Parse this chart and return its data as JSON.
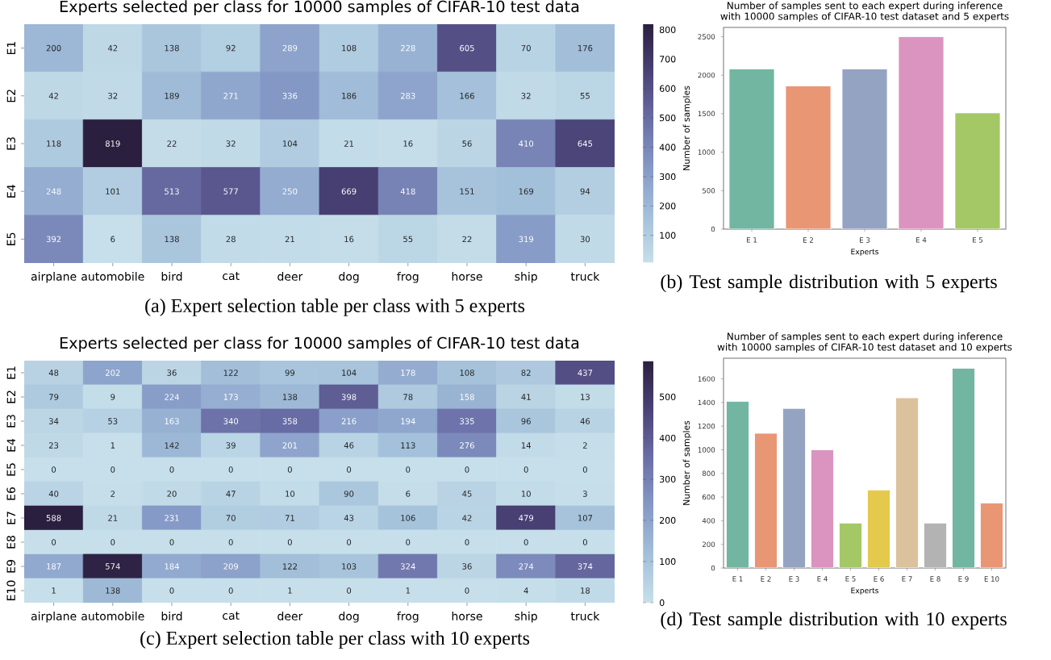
{
  "chart_data": [
    {
      "type": "heatmap",
      "title": "Experts selected per class for 10000 samples of CIFAR-10 test data",
      "categories": [
        "airplane",
        "automobile",
        "bird",
        "cat",
        "deer",
        "dog",
        "frog",
        "horse",
        "ship",
        "truck"
      ],
      "y_categories": [
        "E1",
        "E2",
        "E3",
        "E4",
        "E5"
      ],
      "cells": [
        [
          200,
          42,
          138,
          92,
          289,
          108,
          228,
          605,
          70,
          176
        ],
        [
          42,
          32,
          189,
          271,
          336,
          186,
          283,
          166,
          32,
          55
        ],
        [
          118,
          819,
          22,
          32,
          104,
          21,
          16,
          56,
          410,
          645
        ],
        [
          248,
          101,
          513,
          577,
          250,
          669,
          418,
          151,
          169,
          94
        ],
        [
          392,
          6,
          138,
          28,
          21,
          16,
          55,
          22,
          319,
          30
        ]
      ],
      "clim": [
        6,
        819
      ],
      "cticks": [
        100,
        200,
        300,
        400,
        500,
        600,
        700,
        800
      ],
      "data_labels": true,
      "annotations": [
        "(a) Expert selection table per class with 5 experts"
      ]
    },
    {
      "type": "bar",
      "title": "Number of samples sent to each expert during inference with 10000 samples of CIFAR-10 test dataset and 5 experts",
      "categories": [
        "E 1",
        "E 2",
        "E 3",
        "E 4",
        "E 5"
      ],
      "values": [
        2080,
        1860,
        2080,
        2500,
        1510
      ],
      "colors": [
        "#72b6a1",
        "#e99675",
        "#95a3c3",
        "#db94c0",
        "#a4c865"
      ],
      "xlabel": "Experts",
      "ylabel": "Number of samples",
      "ylim": [
        0,
        2620
      ],
      "yticks": [
        0,
        500,
        1000,
        1500,
        2000,
        2500
      ],
      "annotations": [
        "(b) Test sample distribution with 5 experts"
      ]
    },
    {
      "type": "heatmap",
      "title": "Experts selected per class for 10000 samples of CIFAR-10 test data",
      "categories": [
        "airplane",
        "automobile",
        "bird",
        "cat",
        "deer",
        "dog",
        "frog",
        "horse",
        "ship",
        "truck"
      ],
      "y_categories": [
        "E1",
        "E2",
        "E3",
        "E4",
        "E5",
        "E6",
        "E7",
        "E8",
        "E9",
        "E10"
      ],
      "cells": [
        [
          48,
          202,
          36,
          122,
          99,
          104,
          178,
          108,
          82,
          437
        ],
        [
          79,
          9,
          224,
          173,
          138,
          398,
          78,
          158,
          41,
          13
        ],
        [
          34,
          53,
          163,
          340,
          358,
          216,
          194,
          335,
          96,
          46
        ],
        [
          23,
          1,
          142,
          39,
          201,
          46,
          113,
          276,
          14,
          2
        ],
        [
          0,
          0,
          0,
          0,
          0,
          0,
          0,
          0,
          0,
          0
        ],
        [
          40,
          2,
          20,
          47,
          10,
          90,
          6,
          45,
          10,
          3
        ],
        [
          588,
          21,
          231,
          70,
          71,
          43,
          106,
          42,
          479,
          107
        ],
        [
          0,
          0,
          0,
          0,
          0,
          0,
          0,
          0,
          0,
          0
        ],
        [
          187,
          574,
          184,
          209,
          122,
          103,
          324,
          36,
          274,
          374
        ],
        [
          1,
          138,
          0,
          0,
          1,
          0,
          1,
          0,
          4,
          18
        ]
      ],
      "clim": [
        0,
        588
      ],
      "cticks": [
        0,
        100,
        200,
        300,
        400,
        500
      ],
      "data_labels": true,
      "annotations": [
        "(c) Expert selection table per class with 10 experts"
      ]
    },
    {
      "type": "bar",
      "title": "Number of samples sent to each expert during inference with 10000 samples of CIFAR-10 test dataset and 10 experts",
      "categories": [
        "E 1",
        "E 2",
        "E 3",
        "E 4",
        "E 5",
        "E 6",
        "E 7",
        "E 8",
        "E 9",
        "E 10"
      ],
      "values": [
        1410,
        1140,
        1350,
        1000,
        380,
        660,
        1440,
        380,
        1690,
        550
      ],
      "colors": [
        "#72b6a1",
        "#e99675",
        "#95a3c3",
        "#db94c0",
        "#a4c865",
        "#e4c94d",
        "#dbc29d",
        "#b3b3b3",
        "#72b6a1",
        "#e99675"
      ],
      "xlabel": "Experts",
      "ylabel": "Number of samples",
      "ylim": [
        0,
        1775
      ],
      "yticks": [
        0,
        200,
        400,
        600,
        800,
        1000,
        1200,
        1400,
        1600
      ],
      "annotations": [
        "(d) Test sample distribution with 10 experts"
      ]
    }
  ]
}
